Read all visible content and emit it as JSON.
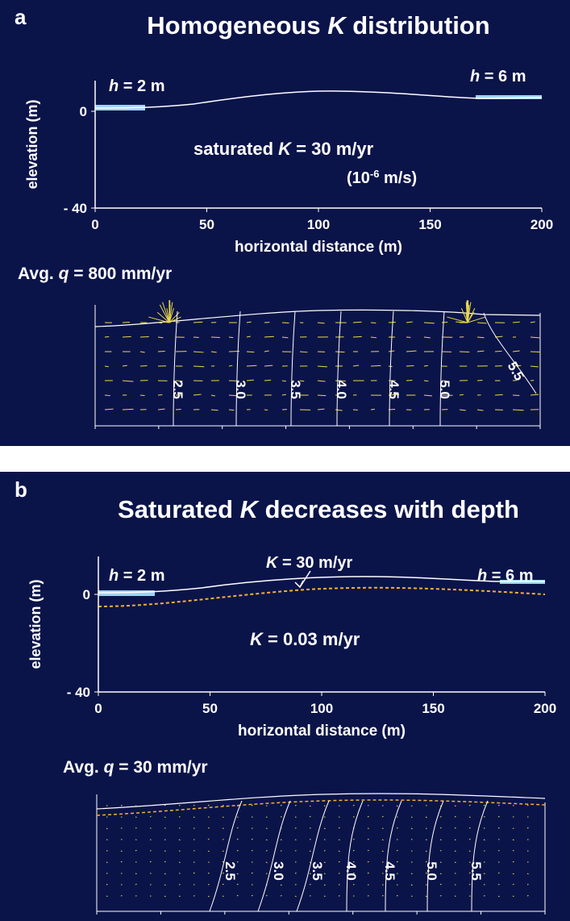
{
  "panels": [
    {
      "label": "a",
      "title": [
        "Homogeneous ",
        {
          "text": "K",
          "style": "italic"
        },
        " distribution"
      ],
      "annotations": [
        [
          {
            "text": "h",
            "style": "italic"
          },
          " =  2 m"
        ],
        [
          {
            "text": "h",
            "style": "italic"
          },
          " = 6 m"
        ],
        [
          "saturated ",
          {
            "text": "K",
            "style": "italic"
          },
          " = 30 m/yr"
        ],
        [
          "(10",
          {
            "text": "-6",
            "style": "sup"
          },
          " m/s)"
        ]
      ],
      "y_label": "elevation (m)",
      "y_ticks": [
        0,
        {
          "value": -40,
          "label": "- 40"
        }
      ],
      "x_ticks": [
        0,
        50,
        100,
        150,
        200
      ],
      "x_label": "horizontal distance (m)",
      "flux_label": [
        "Avg. ",
        {
          "text": "q",
          "style": "italic"
        },
        " = 800 mm/yr"
      ],
      "contour_labels": [
        "2.5",
        "3.0",
        "3.5",
        "4.0",
        "4.5",
        "5.0",
        "5.5"
      ]
    },
    {
      "label": "b",
      "title": [
        "Saturated ",
        {
          "text": "K",
          "style": "italic"
        },
        " decreases with depth"
      ],
      "annotations": [
        [
          {
            "text": "h",
            "style": "italic"
          },
          " =  2 m"
        ],
        [
          {
            "text": "h",
            "style": "italic"
          },
          " = 6 m"
        ],
        [
          {
            "text": "K",
            "style": "italic"
          },
          " = 30 m/yr"
        ],
        [
          {
            "text": "K",
            "style": "italic"
          },
          " = 0.03 m/yr"
        ]
      ],
      "y_label": "elevation (m)",
      "y_ticks": [
        0,
        {
          "value": -40,
          "label": "- 40"
        }
      ],
      "x_ticks": [
        0,
        50,
        100,
        150,
        200
      ],
      "x_label": "horizontal distance (m)",
      "flux_label": [
        "Avg. ",
        {
          "text": "q",
          "style": "italic"
        },
        " = 30 mm/yr"
      ],
      "contour_labels": [
        "2.5",
        "3.0",
        "3.5",
        "4.0",
        "4.5",
        "5.0",
        "5.5"
      ]
    }
  ]
}
